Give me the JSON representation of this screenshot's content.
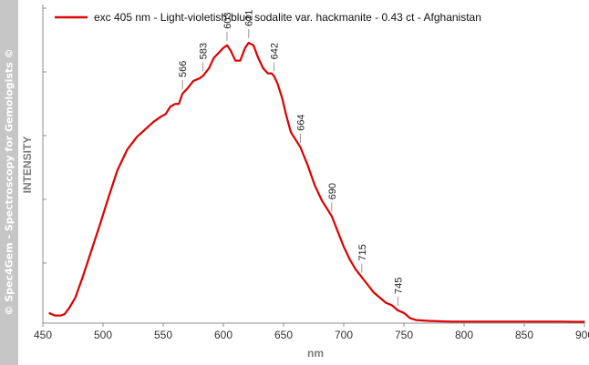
{
  "watermark": "© Spec4Gem - Spectroscopy for Gemologists ©",
  "colors": {
    "series": "#dd0000",
    "axis": "#8c8c8c",
    "watermark_bg": "#c6c6c6"
  },
  "chart_data": {
    "type": "line",
    "xlabel": "nm",
    "ylabel": "INTENSITY",
    "xlim": [
      450,
      900
    ],
    "xticks": [
      450,
      500,
      550,
      600,
      650,
      700,
      750,
      800,
      850,
      900
    ],
    "yticks_labeled": false,
    "grid": false,
    "legend_position": "top-left",
    "series": [
      {
        "name": "exc 405 nm - Light-violetish-blue sodalite var. hackmanite - 0.43 ct - Afghanistan",
        "x": [
          455,
          460,
          465,
          468,
          472,
          477,
          483,
          490,
          497,
          505,
          512,
          520,
          528,
          535,
          542,
          548,
          552,
          556,
          560,
          563,
          566,
          570,
          575,
          580,
          583,
          588,
          592,
          596,
          600,
          603,
          606,
          610,
          614,
          618,
          621,
          625,
          629,
          633,
          637,
          640,
          642,
          645,
          649,
          652,
          656,
          660,
          664,
          670,
          676,
          682,
          686,
          690,
          695,
          700,
          705,
          710,
          715,
          720,
          725,
          730,
          735,
          740,
          745,
          750,
          755,
          760,
          770,
          780,
          790,
          800,
          820,
          840,
          860,
          880,
          900
        ],
        "values": [
          0.04,
          0.03,
          0.03,
          0.035,
          0.06,
          0.1,
          0.18,
          0.28,
          0.38,
          0.5,
          0.6,
          0.68,
          0.73,
          0.76,
          0.79,
          0.81,
          0.82,
          0.85,
          0.86,
          0.86,
          0.9,
          0.92,
          0.95,
          0.96,
          0.97,
          1.0,
          1.04,
          1.06,
          1.08,
          1.09,
          1.07,
          1.03,
          1.03,
          1.08,
          1.1,
          1.09,
          1.04,
          1.0,
          0.98,
          0.98,
          0.97,
          0.94,
          0.88,
          0.82,
          0.75,
          0.72,
          0.69,
          0.62,
          0.54,
          0.48,
          0.45,
          0.42,
          0.36,
          0.3,
          0.25,
          0.21,
          0.18,
          0.15,
          0.12,
          0.1,
          0.08,
          0.07,
          0.05,
          0.04,
          0.02,
          0.012,
          0.009,
          0.007,
          0.006,
          0.006,
          0.006,
          0.006,
          0.006,
          0.006,
          0.005
        ]
      }
    ],
    "annotations": [
      {
        "x": 566,
        "label": "566"
      },
      {
        "x": 583,
        "label": "583"
      },
      {
        "x": 603,
        "label": "603"
      },
      {
        "x": 621,
        "label": "621"
      },
      {
        "x": 642,
        "label": "642"
      },
      {
        "x": 664,
        "label": "664"
      },
      {
        "x": 690,
        "label": "690"
      },
      {
        "x": 715,
        "label": "715"
      },
      {
        "x": 745,
        "label": "745"
      }
    ]
  }
}
